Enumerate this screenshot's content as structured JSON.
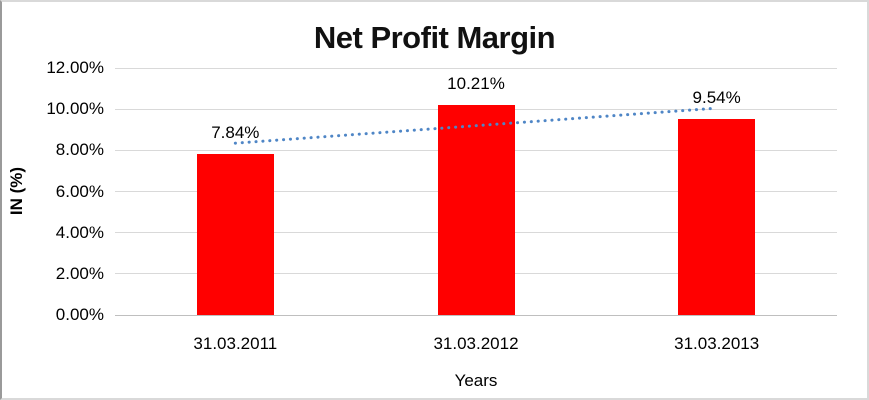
{
  "chart_data": {
    "type": "bar",
    "title": "Net Profit Margin",
    "xlabel": "Years",
    "ylabel": "IN (%)",
    "categories": [
      "31.03.2011",
      "31.03.2012",
      "31.03.2013"
    ],
    "values": [
      7.84,
      10.21,
      9.54
    ],
    "data_labels": [
      "7.84%",
      "10.21%",
      "9.54%"
    ],
    "ylim": [
      0,
      12
    ],
    "y_ticks": [
      {
        "label": "0.00%",
        "value": 0
      },
      {
        "label": "2.00%",
        "value": 2
      },
      {
        "label": "4.00%",
        "value": 4
      },
      {
        "label": "6.00%",
        "value": 6
      },
      {
        "label": "8.00%",
        "value": 8
      },
      {
        "label": "10.00%",
        "value": 10
      },
      {
        "label": "12.00%",
        "value": 12
      }
    ],
    "grid": true,
    "legend": false,
    "bar_color": "#ff0000",
    "trendline": {
      "type": "linear",
      "style": "dotted",
      "color": "#4f86c6"
    }
  }
}
